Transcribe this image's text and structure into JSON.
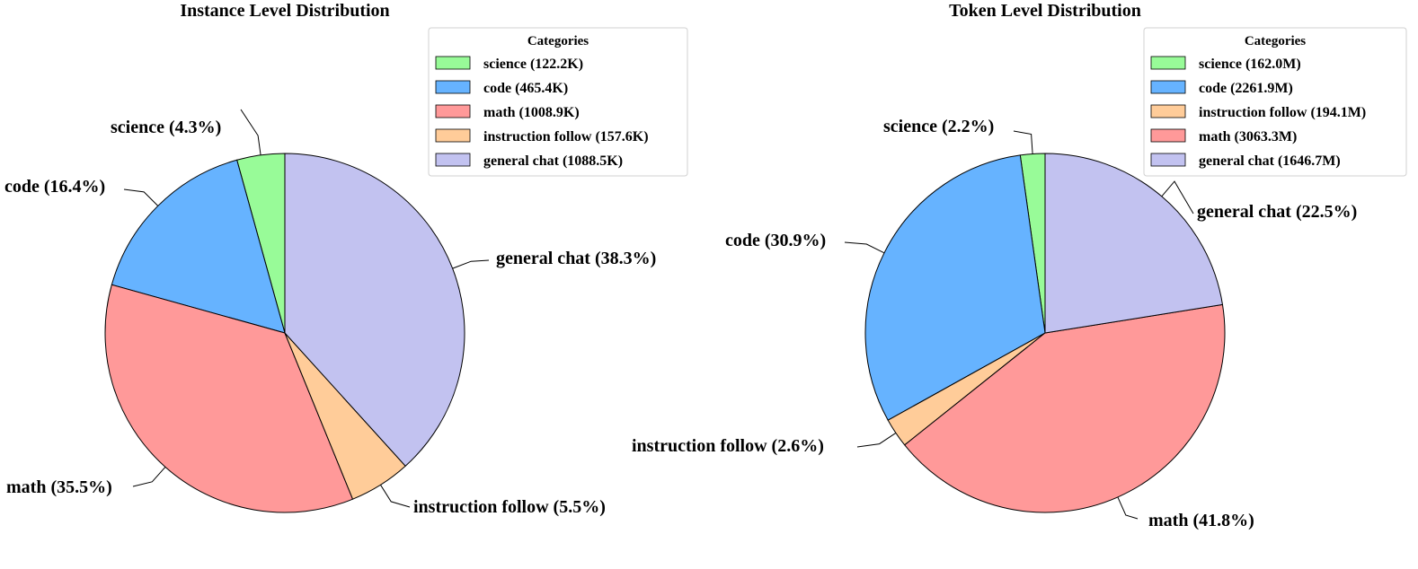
{
  "chart_data": [
    {
      "type": "pie",
      "title": "Instance Level Distribution",
      "legend_title": "Categories",
      "legend_position": "top-right",
      "start_angle_deg": 90,
      "direction": "counterclockwise",
      "slices": [
        {
          "name": "science",
          "value": 122.2,
          "unit": "K",
          "legend_label": "science (122.2K)",
          "label": "science (4.3%)",
          "color": "#98FB98"
        },
        {
          "name": "code",
          "value": 465.4,
          "unit": "K",
          "legend_label": "code (465.4K)",
          "label": "code (16.4%)",
          "color": "#66B3FF"
        },
        {
          "name": "math",
          "value": 1008.9,
          "unit": "K",
          "legend_label": "math (1008.9K)",
          "label": "math (35.5%)",
          "color": "#FF9999"
        },
        {
          "name": "instruction follow",
          "value": 157.6,
          "unit": "K",
          "legend_label": "instruction follow (157.6K)",
          "label": "instruction follow (5.5%)",
          "color": "#FFCC99"
        },
        {
          "name": "general chat",
          "value": 1088.5,
          "unit": "K",
          "legend_label": "general chat (1088.5K)",
          "label": "general chat (38.3%)",
          "color": "#C2C2F0"
        }
      ]
    },
    {
      "type": "pie",
      "title": "Token Level Distribution",
      "legend_title": "Categories",
      "legend_position": "top-right",
      "start_angle_deg": 90,
      "direction": "counterclockwise",
      "slices": [
        {
          "name": "science",
          "value": 162.0,
          "unit": "M",
          "legend_label": "science (162.0M)",
          "label": "science (2.2%)",
          "color": "#98FB98"
        },
        {
          "name": "code",
          "value": 2261.9,
          "unit": "M",
          "legend_label": "code (2261.9M)",
          "label": "code (30.9%)",
          "color": "#66B3FF"
        },
        {
          "name": "instruction follow",
          "value": 194.1,
          "unit": "M",
          "legend_label": "instruction follow (194.1M)",
          "label": "instruction follow (2.6%)",
          "color": "#FFCC99"
        },
        {
          "name": "math",
          "value": 3063.3,
          "unit": "M",
          "legend_label": "math (3063.3M)",
          "label": "math (41.8%)",
          "color": "#FF9999"
        },
        {
          "name": "general chat",
          "value": 1646.7,
          "unit": "M",
          "legend_label": "general chat (1646.7M)",
          "label": "general chat (22.5%)",
          "color": "#C2C2F0"
        }
      ]
    }
  ]
}
